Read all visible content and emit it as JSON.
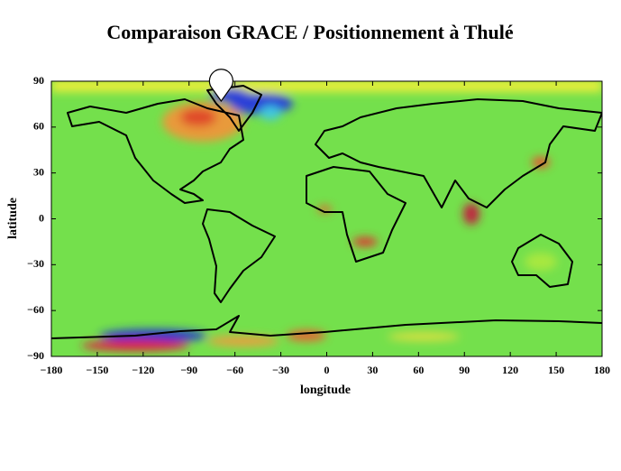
{
  "chart_data": {
    "type": "map",
    "title": "Comparaison GRACE / Positionnement à Thulé",
    "xlabel": "longitude",
    "ylabel": "latitude",
    "xlim": [
      -180,
      180
    ],
    "ylim": [
      -90,
      90
    ],
    "xticks": [
      {
        "value": -180,
        "label": "−180"
      },
      {
        "value": -150,
        "label": "−150"
      },
      {
        "value": -120,
        "label": "−120"
      },
      {
        "value": -90,
        "label": "−90"
      },
      {
        "value": -60,
        "label": "−60"
      },
      {
        "value": -30,
        "label": "−30"
      },
      0,
      30,
      60,
      90,
      120,
      150,
      180
    ],
    "yticks": [
      {
        "value": -90,
        "label": "−90"
      },
      {
        "value": -60,
        "label": "−60"
      },
      {
        "value": -30,
        "label": "−30"
      },
      0,
      30,
      60,
      90
    ],
    "marker": {
      "x": -69,
      "y": 77
    },
    "grid": false
  }
}
